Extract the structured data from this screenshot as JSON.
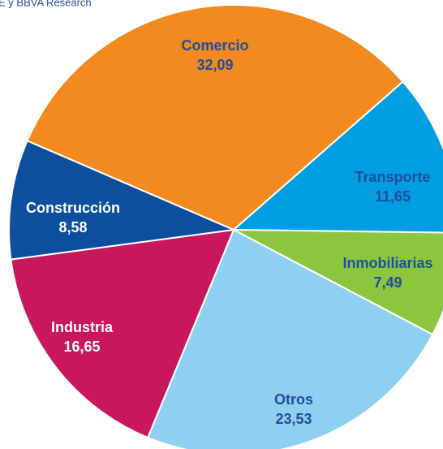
{
  "source": "E y BBVA Research",
  "chart_data": {
    "type": "pie",
    "categories": [
      "Comercio",
      "Transporte",
      "Inmobiliarias",
      "Otros",
      "Industria",
      "Construcción"
    ],
    "values": [
      32.09,
      11.65,
      7.49,
      23.53,
      16.65,
      8.58
    ],
    "value_labels": [
      "32,09",
      "11,65",
      "7,49",
      "23,53",
      "16,65",
      "8,58"
    ],
    "colors": [
      "#f28a1f",
      "#009fe3",
      "#8cc63f",
      "#8fd0f0",
      "#c8175d",
      "#0d4f9e"
    ]
  }
}
